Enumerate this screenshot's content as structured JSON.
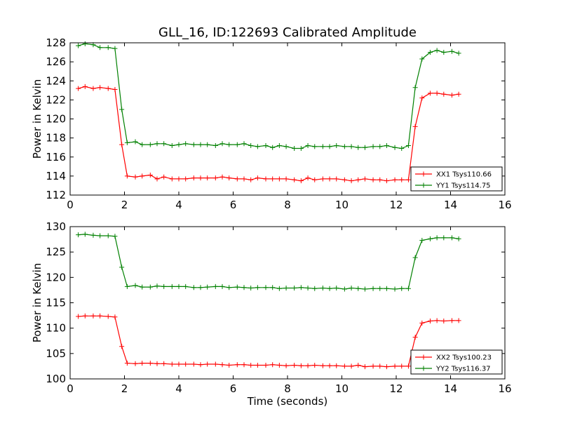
{
  "title": "GLL_16, ID:122693 Calibrated Amplitude",
  "chart_data": [
    {
      "type": "line",
      "title": "GLL_16, ID:122693 Calibrated Amplitude",
      "xlabel": "",
      "ylabel": "Power in Kelvin",
      "xlim": [
        0,
        16
      ],
      "ylim": [
        112,
        128
      ],
      "x_ticks": [
        "0",
        "2",
        "4",
        "6",
        "8",
        "10",
        "12",
        "14",
        "16"
      ],
      "y_ticks": [
        "112",
        "114",
        "116",
        "118",
        "120",
        "122",
        "124",
        "126",
        "128"
      ],
      "grid": false,
      "legend_position": "lower-right",
      "x": [
        0.3,
        0.55,
        0.85,
        1.1,
        1.4,
        1.65,
        1.9,
        2.1,
        2.4,
        2.65,
        2.95,
        3.2,
        3.45,
        3.75,
        4.0,
        4.25,
        4.55,
        4.8,
        5.05,
        5.35,
        5.6,
        5.85,
        6.15,
        6.4,
        6.65,
        6.9,
        7.2,
        7.45,
        7.7,
        7.95,
        8.25,
        8.5,
        8.75,
        9.0,
        9.3,
        9.55,
        9.8,
        10.1,
        10.35,
        10.6,
        10.85,
        11.15,
        11.4,
        11.65,
        11.95,
        12.2,
        12.45,
        12.7,
        12.95,
        13.25,
        13.5,
        13.75,
        14.05,
        14.3
      ],
      "series": [
        {
          "name": "XX1 Tsys110.66",
          "color": "#ff0000",
          "values": [
            123.2,
            123.4,
            123.2,
            123.3,
            123.2,
            123.1,
            117.3,
            114.0,
            113.9,
            114.0,
            114.1,
            113.7,
            113.9,
            113.7,
            113.7,
            113.7,
            113.8,
            113.8,
            113.8,
            113.8,
            113.9,
            113.8,
            113.7,
            113.7,
            113.6,
            113.8,
            113.7,
            113.7,
            113.7,
            113.7,
            113.6,
            113.5,
            113.8,
            113.6,
            113.7,
            113.7,
            113.7,
            113.6,
            113.5,
            113.6,
            113.7,
            113.6,
            113.6,
            113.5,
            113.6,
            113.6,
            113.6,
            119.2,
            122.2,
            122.7,
            122.7,
            122.6,
            122.5,
            122.6
          ]
        },
        {
          "name": "YY1 Tsys114.75",
          "color": "#008000",
          "values": [
            127.7,
            127.9,
            127.8,
            127.5,
            127.5,
            127.4,
            121.0,
            117.5,
            117.6,
            117.3,
            117.3,
            117.4,
            117.4,
            117.2,
            117.3,
            117.4,
            117.3,
            117.3,
            117.3,
            117.2,
            117.4,
            117.3,
            117.3,
            117.4,
            117.2,
            117.1,
            117.2,
            117.0,
            117.2,
            117.1,
            116.9,
            116.9,
            117.2,
            117.1,
            117.1,
            117.1,
            117.2,
            117.1,
            117.1,
            117.0,
            117.0,
            117.1,
            117.1,
            117.2,
            117.0,
            116.9,
            117.2,
            123.3,
            126.3,
            127.0,
            127.2,
            127.0,
            127.1,
            126.9
          ]
        }
      ]
    },
    {
      "type": "line",
      "title": "",
      "xlabel": "Time (seconds)",
      "ylabel": "Power in Kelvin",
      "xlim": [
        0,
        16
      ],
      "ylim": [
        100,
        130
      ],
      "x_ticks": [
        "0",
        "2",
        "4",
        "6",
        "8",
        "10",
        "12",
        "14",
        "16"
      ],
      "y_ticks": [
        "100",
        "105",
        "110",
        "115",
        "120",
        "125",
        "130"
      ],
      "grid": false,
      "legend_position": "lower-right",
      "x": [
        0.3,
        0.55,
        0.85,
        1.1,
        1.4,
        1.65,
        1.9,
        2.1,
        2.4,
        2.65,
        2.95,
        3.2,
        3.45,
        3.75,
        4.0,
        4.25,
        4.55,
        4.8,
        5.05,
        5.35,
        5.6,
        5.85,
        6.15,
        6.4,
        6.65,
        6.9,
        7.2,
        7.45,
        7.7,
        7.95,
        8.25,
        8.5,
        8.75,
        9.0,
        9.3,
        9.55,
        9.8,
        10.1,
        10.35,
        10.6,
        10.85,
        11.15,
        11.4,
        11.65,
        11.95,
        12.2,
        12.45,
        12.7,
        12.95,
        13.25,
        13.5,
        13.75,
        14.05,
        14.3
      ],
      "series": [
        {
          "name": "XX2 Tsys100.23",
          "color": "#ff0000",
          "values": [
            112.3,
            112.4,
            112.4,
            112.4,
            112.3,
            112.2,
            106.4,
            103.1,
            103.0,
            103.1,
            103.1,
            103.0,
            103.0,
            102.9,
            102.9,
            102.9,
            102.9,
            102.8,
            102.9,
            102.9,
            102.8,
            102.7,
            102.8,
            102.8,
            102.7,
            102.7,
            102.7,
            102.8,
            102.7,
            102.6,
            102.7,
            102.6,
            102.6,
            102.7,
            102.6,
            102.6,
            102.6,
            102.5,
            102.5,
            102.7,
            102.4,
            102.5,
            102.5,
            102.4,
            102.5,
            102.5,
            102.5,
            108.2,
            111.0,
            111.4,
            111.5,
            111.4,
            111.5,
            111.5
          ]
        },
        {
          "name": "YY2 Tsys116.37",
          "color": "#008000",
          "values": [
            128.4,
            128.5,
            128.3,
            128.2,
            128.2,
            128.1,
            122.0,
            118.2,
            118.4,
            118.1,
            118.1,
            118.3,
            118.2,
            118.2,
            118.2,
            118.2,
            118.0,
            118.0,
            118.1,
            118.2,
            118.2,
            118.0,
            118.1,
            118.0,
            117.9,
            118.0,
            118.0,
            118.0,
            117.8,
            117.9,
            117.9,
            118.0,
            117.9,
            117.8,
            117.9,
            117.8,
            117.9,
            117.7,
            117.9,
            117.8,
            117.7,
            117.8,
            117.8,
            117.8,
            117.7,
            117.8,
            117.8,
            123.9,
            127.3,
            127.6,
            127.8,
            127.8,
            127.8,
            127.6
          ]
        }
      ]
    }
  ]
}
